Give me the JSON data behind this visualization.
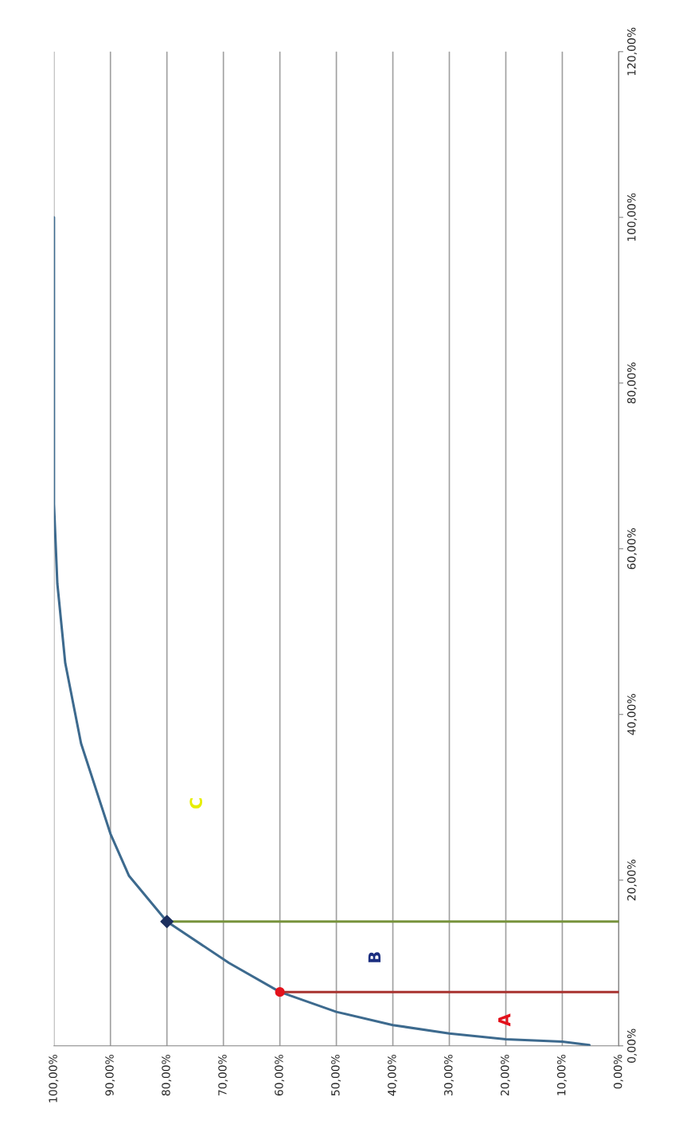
{
  "chart_data": {
    "type": "line",
    "xlim": [
      100,
      0
    ],
    "xticks": [
      {
        "value": 100,
        "label": "100,00%"
      },
      {
        "value": 90,
        "label": "90,00%"
      },
      {
        "value": 80,
        "label": "80,00%"
      },
      {
        "value": 70,
        "label": "70,00%"
      },
      {
        "value": 60,
        "label": "60,00%"
      },
      {
        "value": 50,
        "label": "50,00%"
      },
      {
        "value": 40,
        "label": "40,00%"
      },
      {
        "value": 30,
        "label": "30,00%"
      },
      {
        "value": 20,
        "label": "20,00%"
      },
      {
        "value": 10,
        "label": "10,00%"
      },
      {
        "value": 0,
        "label": "0,00%"
      }
    ],
    "ylim": [
      0,
      120
    ],
    "yticks": [
      {
        "value": 0,
        "label": "0,00%"
      },
      {
        "value": 20,
        "label": "20,00%"
      },
      {
        "value": 40,
        "label": "40,00%"
      },
      {
        "value": 60,
        "label": "60,00%"
      },
      {
        "value": 80,
        "label": "80,00%"
      },
      {
        "value": 100,
        "label": "100,00%"
      },
      {
        "value": 120,
        "label": "120,00%"
      }
    ],
    "grid": "x",
    "series": [
      {
        "color": "#3d6a8e",
        "x": [
          5.2,
          10,
          20,
          30,
          40,
          50,
          60,
          69,
          80,
          86.7,
          90,
          95.2,
          98,
          99.4,
          100,
          100,
          100
        ],
        "values": [
          0.1,
          0.5,
          0.8,
          1.5,
          2.5,
          4.1,
          6.5,
          10,
          15,
          20.5,
          25.6,
          36.5,
          46.2,
          55.8,
          65.4,
          80,
          100
        ]
      },
      {
        "color": "#a8322f",
        "x": [
          60,
          0
        ],
        "values": [
          6.5,
          6.5
        ]
      },
      {
        "color": "#77933c",
        "x": [
          80,
          0
        ],
        "values": [
          15,
          15
        ]
      },
      {
        "type": "scatter",
        "color": "#e3121c",
        "marker": "circle",
        "x": [
          60
        ],
        "values": [
          6.5
        ]
      },
      {
        "type": "scatter",
        "color": "#1c2f5e",
        "marker": "diamond",
        "x": [
          80
        ],
        "values": [
          15
        ]
      }
    ],
    "annotations": [
      "A",
      "B",
      "C"
    ]
  }
}
